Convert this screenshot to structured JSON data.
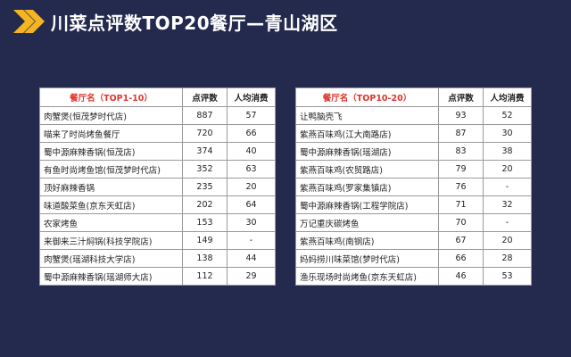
{
  "title": "川菜点评数TOP20餐厅—青山湖区",
  "colors": {
    "background": "#242a4e",
    "accent": "#f5b521",
    "header_text": "#e0342a"
  },
  "icon": "double-chevron-right-icon",
  "tables": [
    {
      "header": {
        "name": "餐厅名（TOP1-10）",
        "reviews": "点评数",
        "avg": "人均消费"
      },
      "rows": [
        {
          "name": "肉蟹煲(恒茂梦时代店)",
          "reviews": "887",
          "avg": "57"
        },
        {
          "name": "喵来了时尚烤鱼餐厅",
          "reviews": "720",
          "avg": "66"
        },
        {
          "name": "蜀中源麻辣香锅(恒茂店)",
          "reviews": "374",
          "avg": "40"
        },
        {
          "name": "有鱼时尚烤鱼馆(恒茂梦时代店)",
          "reviews": "352",
          "avg": "63"
        },
        {
          "name": "顶好麻辣香锅",
          "reviews": "235",
          "avg": "20"
        },
        {
          "name": "味道酸菜鱼(京东天虹店)",
          "reviews": "202",
          "avg": "64"
        },
        {
          "name": "农家烤鱼",
          "reviews": "153",
          "avg": "30"
        },
        {
          "name": "来御来三汁焖锅(科技学院店)",
          "reviews": "149",
          "avg": "-"
        },
        {
          "name": "肉蟹煲(瑶湖科技大学店)",
          "reviews": "138",
          "avg": "44"
        },
        {
          "name": "蜀中源麻辣香锅(瑶湖师大店)",
          "reviews": "112",
          "avg": "29"
        }
      ]
    },
    {
      "header": {
        "name": "餐厅名（TOP10-20）",
        "reviews": "点评数",
        "avg": "人均消费"
      },
      "rows": [
        {
          "name": "让鸭脑壳飞",
          "reviews": "93",
          "avg": "52"
        },
        {
          "name": "紫燕百味鸡(江大南路店)",
          "reviews": "87",
          "avg": "30"
        },
        {
          "name": "蜀中源麻辣香锅(瑶湖店)",
          "reviews": "83",
          "avg": "38"
        },
        {
          "name": "紫燕百味鸡(农贸路店)",
          "reviews": "79",
          "avg": "20"
        },
        {
          "name": "紫燕百味鸡(罗家集镇店)",
          "reviews": "76",
          "avg": "-"
        },
        {
          "name": "蜀中源麻辣香锅(工程学院店)",
          "reviews": "71",
          "avg": "32"
        },
        {
          "name": "万记重庆碳烤鱼",
          "reviews": "70",
          "avg": "-"
        },
        {
          "name": "紫燕百味鸡(南钢店)",
          "reviews": "67",
          "avg": "20"
        },
        {
          "name": "妈妈捞川味菜馆(梦时代店)",
          "reviews": "66",
          "avg": "28"
        },
        {
          "name": "渔乐现场时尚烤鱼(京东天虹店)",
          "reviews": "46",
          "avg": "53"
        }
      ]
    }
  ]
}
